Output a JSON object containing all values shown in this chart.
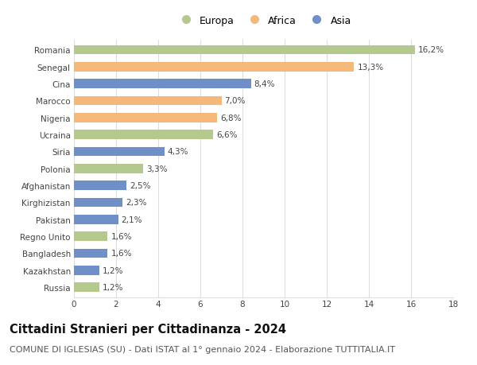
{
  "categories": [
    "Romania",
    "Senegal",
    "Cina",
    "Marocco",
    "Nigeria",
    "Ucraina",
    "Siria",
    "Polonia",
    "Afghanistan",
    "Kirghizistan",
    "Pakistan",
    "Regno Unito",
    "Bangladesh",
    "Kazakhstan",
    "Russia"
  ],
  "values": [
    16.2,
    13.3,
    8.4,
    7.0,
    6.8,
    6.6,
    4.3,
    3.3,
    2.5,
    2.3,
    2.1,
    1.6,
    1.6,
    1.2,
    1.2
  ],
  "labels": [
    "16,2%",
    "13,3%",
    "8,4%",
    "7,0%",
    "6,8%",
    "6,6%",
    "4,3%",
    "3,3%",
    "2,5%",
    "2,3%",
    "2,1%",
    "1,6%",
    "1,6%",
    "1,2%",
    "1,2%"
  ],
  "continents": [
    "Europa",
    "Africa",
    "Asia",
    "Africa",
    "Africa",
    "Europa",
    "Asia",
    "Europa",
    "Asia",
    "Asia",
    "Asia",
    "Europa",
    "Asia",
    "Asia",
    "Europa"
  ],
  "colors": {
    "Europa": "#b5c98e",
    "Africa": "#f4b87a",
    "Asia": "#6e8fc7"
  },
  "legend_labels": [
    "Europa",
    "Africa",
    "Asia"
  ],
  "title": "Cittadini Stranieri per Cittadinanza - 2024",
  "subtitle": "COMUNE DI IGLESIAS (SU) - Dati ISTAT al 1° gennaio 2024 - Elaborazione TUTTITALIA.IT",
  "xlim": [
    0,
    18
  ],
  "xticks": [
    0,
    2,
    4,
    6,
    8,
    10,
    12,
    14,
    16,
    18
  ],
  "background_color": "#ffffff",
  "grid_color": "#dddddd",
  "bar_height": 0.55,
  "title_fontsize": 10.5,
  "subtitle_fontsize": 8.0,
  "label_fontsize": 7.5,
  "tick_fontsize": 7.5,
  "legend_fontsize": 9
}
